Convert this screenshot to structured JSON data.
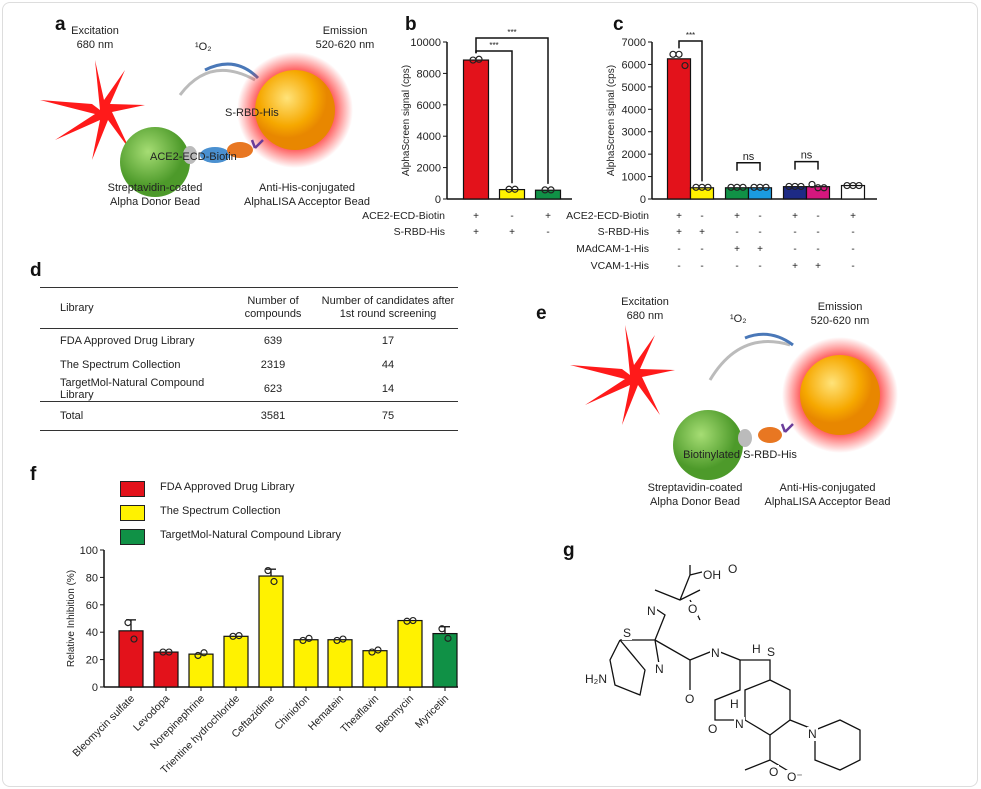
{
  "panel_labels": {
    "a": "a",
    "b": "b",
    "c": "c",
    "d": "d",
    "e": "e",
    "f": "f",
    "g": "g"
  },
  "panel_a": {
    "excitation": "Excitation",
    "excitation_nm": "680 nm",
    "singlet_oxygen": "¹O₂",
    "emission": "Emission",
    "emission_nm": "520-620 nm",
    "s_rbd": "S-RBD-His",
    "ace2": "ACE2-ECD-Biotin",
    "donor_1": "Streptavidin-coated",
    "donor_2": "Alpha Donor Bead",
    "acceptor_1": "Anti-His-conjugated",
    "acceptor_2": "AlphaLISA Acceptor Bead"
  },
  "panel_e": {
    "excitation": "Excitation",
    "excitation_nm": "680 nm",
    "singlet_oxygen": "¹O₂",
    "emission": "Emission",
    "emission_nm": "520-620 nm",
    "biotinylated": "Biotinylated S-RBD-His",
    "donor_1": "Streptavidin-coated",
    "donor_2": "Alpha Donor Bead",
    "acceptor_1": "Anti-His-conjugated",
    "acceptor_2": "AlphaLISA Acceptor Bead"
  },
  "colors": {
    "red": "#e3121b",
    "yellow": "#fff200",
    "green": "#109146",
    "blue": "#1b9be0",
    "navy": "#1d2a85",
    "magenta": "#d5177e",
    "white": "#ffffff"
  },
  "chart_data": [
    {
      "id": "b",
      "type": "bar",
      "ylabel": "AlphaScreen signal (cps)",
      "ylim": [
        0,
        10000
      ],
      "yticks": [
        0,
        2000,
        4000,
        6000,
        8000,
        10000
      ],
      "values": [
        8850,
        600,
        560
      ],
      "points": [
        [
          8850,
          8900
        ],
        [
          620,
          620
        ],
        [
          580,
          580
        ]
      ],
      "colors": [
        "#e3121b",
        "#fff200",
        "#109146"
      ],
      "rows": [
        {
          "label": "ACE2-ECD-Biotin",
          "signs": [
            "+",
            "-",
            "+"
          ]
        },
        {
          "label": "S-RBD-His",
          "signs": [
            "+",
            "+",
            "-"
          ]
        }
      ],
      "significance": [
        {
          "from": 0,
          "to": 1,
          "text": "***"
        },
        {
          "from": 0,
          "to": 2,
          "text": "***"
        }
      ]
    },
    {
      "id": "c",
      "type": "bar",
      "ylabel": "AlphaScreen signal (cps)",
      "ylim": [
        0,
        7000
      ],
      "yticks": [
        0,
        1000,
        2000,
        3000,
        4000,
        5000,
        6000,
        7000
      ],
      "values": [
        6250,
        500,
        500,
        500,
        550,
        550,
        600
      ],
      "points": [
        [
          6450,
          6450,
          5950
        ],
        [
          520,
          520,
          520
        ],
        [
          520,
          520,
          520
        ],
        [
          520,
          520,
          520
        ],
        [
          560,
          560,
          560
        ],
        [
          650,
          500,
          500
        ],
        [
          600,
          600,
          600
        ]
      ],
      "colors": [
        "#e3121b",
        "#fff200",
        "#109146",
        "#1b9be0",
        "#1d2a85",
        "#d5177e",
        "#ffffff"
      ],
      "rows": [
        {
          "label": "ACE2-ECD-Biotin",
          "signs": [
            "+",
            "-",
            "+",
            "-",
            "+",
            "-",
            "+"
          ]
        },
        {
          "label": "S-RBD-His",
          "signs": [
            "+",
            "+",
            "-",
            "-",
            "-",
            "-",
            "-"
          ]
        },
        {
          "label": "MAdCAM-1-His",
          "signs": [
            "-",
            "-",
            "+",
            "+",
            "-",
            "-",
            "-"
          ]
        },
        {
          "label": "VCAM-1-His",
          "signs": [
            "-",
            "-",
            "-",
            "-",
            "+",
            "+",
            "-"
          ]
        }
      ],
      "significance": [
        {
          "from": 0,
          "to": 1,
          "text": "***"
        },
        {
          "from": 2,
          "to": 3,
          "text": "ns"
        },
        {
          "from": 4,
          "to": 5,
          "text": "ns"
        }
      ]
    },
    {
      "id": "f",
      "type": "bar",
      "ylabel": "Relative Inhibition (%)",
      "ylim": [
        0,
        100
      ],
      "yticks": [
        0,
        20,
        40,
        60,
        80,
        100
      ],
      "categories": [
        "Bleomycin sulfate",
        "Levodopa",
        "Norepinephrine",
        "Trientine hydrochloride",
        "Ceftazidime",
        "Chiniofon",
        "Hematein",
        "Theaflavin",
        "Bleomycin",
        "Myricetin"
      ],
      "values": [
        41,
        25.5,
        24,
        37,
        81,
        34.5,
        34.5,
        26.5,
        48.5,
        39
      ],
      "error_top": [
        49,
        null,
        null,
        null,
        86,
        null,
        null,
        null,
        null,
        44
      ],
      "points": [
        [
          47,
          35
        ],
        [
          25.5,
          25.5
        ],
        [
          23,
          25
        ],
        [
          37,
          37.5
        ],
        [
          85,
          77
        ],
        [
          34,
          35.5
        ],
        [
          34,
          35
        ],
        [
          25.5,
          27
        ],
        [
          48,
          48.5
        ],
        [
          42.5,
          35.5
        ]
      ],
      "groups": [
        0,
        0,
        1,
        1,
        1,
        1,
        1,
        1,
        1,
        2
      ],
      "legend": [
        {
          "name": "FDA Approved Drug Library",
          "color": "#e3121b"
        },
        {
          "name": "The Spectrum Collection",
          "color": "#fff200"
        },
        {
          "name": "TargetMol-Natural Compound Library",
          "color": "#109146"
        }
      ]
    }
  ],
  "table": {
    "headers": [
      "Library",
      "Number of compounds",
      "Number of candidates after 1st round screening"
    ],
    "rows": [
      [
        "FDA Approved Drug Library",
        "639",
        "17"
      ],
      [
        "The Spectrum Collection",
        "2319",
        "44"
      ],
      [
        "TargetMol-Natural Compound Library",
        "623",
        "14"
      ]
    ],
    "total": [
      "Total",
      "3581",
      "75"
    ]
  },
  "structure": {
    "O1": "O",
    "OH": "OH",
    "O2": "O",
    "N1": "N",
    "S1": "S",
    "N2": "N",
    "H2N": "H₂N",
    "O3": "O",
    "NH": "N",
    "H1": "H",
    "H2": "H",
    "S2": "S",
    "N3": "N",
    "O4": "O",
    "Npy": "N",
    "O5": "O",
    "Ominus": "O⁻"
  }
}
